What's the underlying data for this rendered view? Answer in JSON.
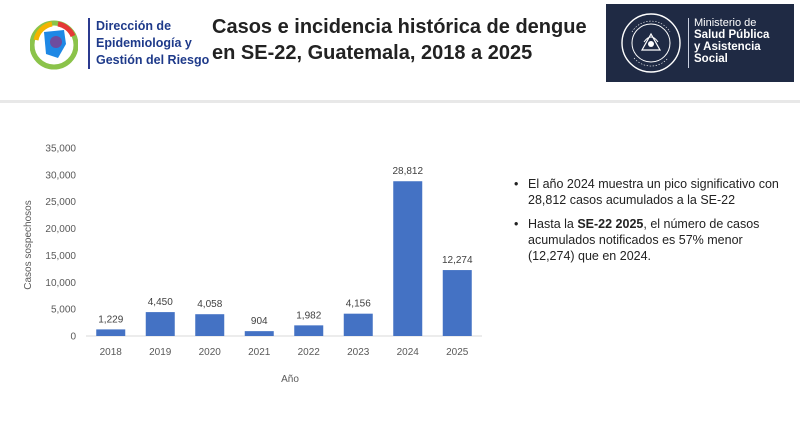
{
  "header": {
    "org_lines": [
      "Dirección de",
      "Epidemiología y",
      "Gestión del Riesgo"
    ],
    "title_lines": [
      "Casos e incidencia histórica de dengue",
      "en SE-22, Guatemala, 2018 a 2025"
    ],
    "ministry_lines": [
      "Ministerio de",
      "Salud Pública",
      "y Asistencia",
      "Social"
    ],
    "seal_text": "GOBIERNO DE LA REPÚBLICA DE GUATEMALA"
  },
  "chart_data": {
    "type": "bar",
    "categories": [
      "2018",
      "2019",
      "2020",
      "2021",
      "2022",
      "2023",
      "2024",
      "2025"
    ],
    "values": [
      1229,
      4450,
      4058,
      904,
      1982,
      4156,
      28812,
      12274
    ],
    "data_labels": [
      "1,229",
      "4,450",
      "4,058",
      "904",
      "1,982",
      "4,156",
      "28,812",
      "12,274"
    ],
    "yticks": [
      "0",
      "5,000",
      "10,000",
      "15,000",
      "20,000",
      "25,000",
      "30,000",
      "35,000"
    ],
    "ylim": [
      0,
      35000
    ],
    "ylabel": "Casos sospechosos",
    "xlabel": "Año",
    "bar_color": "#4472c4",
    "grid": false
  },
  "notes": [
    {
      "bullet": "•",
      "text": "El año 2024 muestra un pico significativo con 28,812 casos acumulados a la SE-22"
    },
    {
      "bullet": "•",
      "pre": "Hasta la ",
      "bold": "SE-22 2025",
      "post": ", el número de casos acumulados notificados es 57% menor (12,274) que en 2024."
    }
  ]
}
